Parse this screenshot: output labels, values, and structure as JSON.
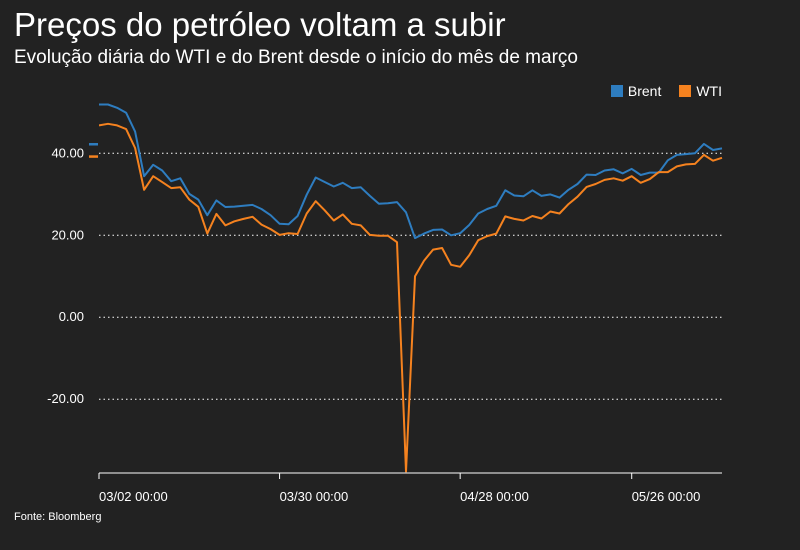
{
  "header": {
    "title": "Preços do petróleo voltam a subir",
    "subtitle": "Evolução diária do WTI e do Brent desde o início do mês de março"
  },
  "footer": {
    "source": "Fonte: Bloomberg"
  },
  "legend": {
    "items": [
      {
        "label": "Brent",
        "color": "#2e7dc0"
      },
      {
        "label": "WTI",
        "color": "#f5821f"
      }
    ]
  },
  "chart_data": {
    "type": "line",
    "title": "Preços do petróleo voltam a subir",
    "subtitle": "Evolução diária do WTI e do Brent desde o início do mês de março",
    "xlabel": "",
    "ylabel": "",
    "x_ticks": [
      "03/02 00:00",
      "03/30 00:00",
      "04/28 00:00",
      "05/26 00:00"
    ],
    "y_ticks": [
      "40.00",
      "20.00",
      "0.00",
      "-20.00"
    ],
    "ylim": [
      -38,
      53
    ],
    "grid": "horizontal dotted",
    "legend_position": "top-right",
    "x": [
      "2020-03-02",
      "2020-03-03",
      "2020-03-04",
      "2020-03-05",
      "2020-03-06",
      "2020-03-09",
      "2020-03-10",
      "2020-03-11",
      "2020-03-12",
      "2020-03-13",
      "2020-03-16",
      "2020-03-17",
      "2020-03-18",
      "2020-03-19",
      "2020-03-20",
      "2020-03-23",
      "2020-03-24",
      "2020-03-25",
      "2020-03-26",
      "2020-03-27",
      "2020-03-30",
      "2020-03-31",
      "2020-04-01",
      "2020-04-02",
      "2020-04-03",
      "2020-04-06",
      "2020-04-07",
      "2020-04-08",
      "2020-04-09",
      "2020-04-13",
      "2020-04-14",
      "2020-04-15",
      "2020-04-16",
      "2020-04-17",
      "2020-04-20",
      "2020-04-21",
      "2020-04-22",
      "2020-04-23",
      "2020-04-24",
      "2020-04-27",
      "2020-04-28",
      "2020-04-29",
      "2020-04-30",
      "2020-05-01",
      "2020-05-04",
      "2020-05-05",
      "2020-05-06",
      "2020-05-07",
      "2020-05-08",
      "2020-05-11",
      "2020-05-12",
      "2020-05-13",
      "2020-05-14",
      "2020-05-15",
      "2020-05-18",
      "2020-05-19",
      "2020-05-20",
      "2020-05-21",
      "2020-05-22",
      "2020-05-26",
      "2020-05-27",
      "2020-05-28",
      "2020-05-29",
      "2020-06-01",
      "2020-06-02",
      "2020-06-03",
      "2020-06-04",
      "2020-06-05",
      "2020-06-08",
      "2020-06-09"
    ],
    "series": [
      {
        "name": "Brent",
        "color": "#2e7dc0",
        "values": [
          51.9,
          51.9,
          51.1,
          49.9,
          45.3,
          34.4,
          37.2,
          35.8,
          33.2,
          33.9,
          30.1,
          28.7,
          24.9,
          28.5,
          26.9,
          27.0,
          27.2,
          27.4,
          26.4,
          24.9,
          22.8,
          22.7,
          24.7,
          29.9,
          34.1,
          33.0,
          31.9,
          32.8,
          31.5,
          31.7,
          29.6,
          27.7,
          27.8,
          28.1,
          25.6,
          19.3,
          20.4,
          21.3,
          21.4,
          19.99,
          20.5,
          22.5,
          25.3,
          26.4,
          27.2,
          30.97,
          29.7,
          29.5,
          30.97,
          29.6,
          29.98,
          29.2,
          31.1,
          32.5,
          34.8,
          34.7,
          35.8,
          36.1,
          35.1,
          36.2,
          34.7,
          35.3,
          35.3,
          38.3,
          39.6,
          39.8,
          39.99,
          42.3,
          40.8,
          41.2
        ]
      },
      {
        "name": "WTI",
        "color": "#f5821f",
        "values": [
          46.8,
          47.2,
          46.8,
          45.9,
          41.3,
          31.1,
          34.4,
          32.98,
          31.5,
          31.7,
          28.7,
          26.95,
          20.4,
          25.2,
          22.4,
          23.4,
          24.0,
          24.5,
          22.6,
          21.5,
          20.1,
          20.5,
          20.3,
          25.3,
          28.3,
          26.1,
          23.6,
          25.1,
          22.8,
          22.4,
          20.1,
          19.9,
          19.9,
          18.3,
          -37.6,
          10.0,
          13.8,
          16.5,
          16.9,
          12.8,
          12.3,
          15.1,
          18.8,
          19.8,
          20.4,
          24.6,
          24.0,
          23.6,
          24.7,
          24.1,
          25.8,
          25.3,
          27.6,
          29.4,
          31.8,
          32.5,
          33.5,
          33.9,
          33.3,
          34.4,
          32.8,
          33.7,
          35.4,
          35.4,
          36.8,
          37.3,
          37.4,
          39.6,
          38.2,
          38.9
        ]
      }
    ],
    "start_markers": {
      "Brent": 42.2,
      "WTI": 39.2
    }
  }
}
